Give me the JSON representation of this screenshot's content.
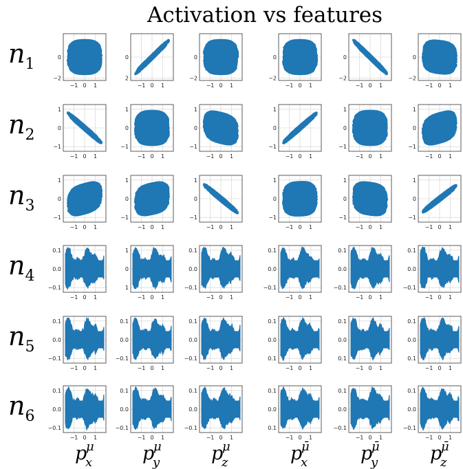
{
  "figure_title": "Activation vs features",
  "row_labels": [
    {
      "base": "n",
      "sub": "1"
    },
    {
      "base": "n",
      "sub": "2"
    },
    {
      "base": "n",
      "sub": "3"
    },
    {
      "base": "n",
      "sub": "4"
    },
    {
      "base": "n",
      "sub": "5"
    },
    {
      "base": "n",
      "sub": "6"
    }
  ],
  "column_labels": [
    {
      "base": "p",
      "sup": "μ",
      "sub": "x"
    },
    {
      "base": "p",
      "sup": "μ",
      "sub": "y"
    },
    {
      "base": "p",
      "sup": "μ",
      "sub": "z"
    },
    {
      "base": "p",
      "sup": "μ̄",
      "sub": "x"
    },
    {
      "base": "p",
      "sup": "μ̄",
      "sub": "y"
    },
    {
      "base": "p",
      "sup": "μ̄",
      "sub": "z"
    }
  ],
  "colors": {
    "fill": "#1f77b4",
    "grid": "#cfcfcf",
    "frame": "#333333"
  },
  "chart_data": {
    "type": "scatter",
    "title": "Activation vs features",
    "grid": true,
    "x_range": [
      -2,
      2
    ],
    "x_ticks": [
      "−1",
      "0",
      "1"
    ],
    "rows": [
      {
        "neuron": "n1",
        "y_range": [
          -2.2,
          2.2
        ],
        "panels": [
          {
            "y_ticks": [
              "0",
              "−2"
            ],
            "shape": "round",
            "corr": 0.0
          },
          {
            "y_ticks": [
              "0",
              "2"
            ],
            "shape": "diagonal",
            "corr": 0.95
          },
          {
            "y_ticks": [
              "0",
              "−2"
            ],
            "shape": "round",
            "corr": 0.0
          },
          {
            "y_ticks": [
              "0",
              "−2"
            ],
            "shape": "round",
            "corr": 0.0
          },
          {
            "y_ticks": [
              "0",
              "−2"
            ],
            "shape": "diagonal",
            "corr": -0.95
          },
          {
            "y_ticks": [
              "0",
              "−2"
            ],
            "shape": "round",
            "corr": -0.15
          }
        ]
      },
      {
        "neuron": "n2",
        "y_range": [
          -1.8,
          1.8
        ],
        "panels": [
          {
            "y_ticks": [
              "1",
              "0",
              "−1"
            ],
            "shape": "diagonal",
            "corr": -0.85
          },
          {
            "y_ticks": [
              "1",
              "0",
              "−1"
            ],
            "shape": "round",
            "corr": 0.0
          },
          {
            "y_ticks": [
              "1",
              "0",
              "−1"
            ],
            "shape": "tilted",
            "corr": -0.35
          },
          {
            "y_ticks": [
              "1",
              "0",
              "−1"
            ],
            "shape": "diagonal",
            "corr": 0.85
          },
          {
            "y_ticks": [
              "1",
              "0",
              "−1"
            ],
            "shape": "round",
            "corr": 0.0
          },
          {
            "y_ticks": [
              "1",
              "0",
              "−1"
            ],
            "shape": "tilted",
            "corr": 0.4
          }
        ]
      },
      {
        "neuron": "n3",
        "y_range": [
          -1.8,
          1.8
        ],
        "panels": [
          {
            "y_ticks": [
              "1",
              "0",
              "−1"
            ],
            "shape": "tilted",
            "corr": 0.4
          },
          {
            "y_ticks": [
              "1",
              "0",
              "−1"
            ],
            "shape": "tilted",
            "corr": 0.3
          },
          {
            "y_ticks": [
              "1",
              "0",
              "−1"
            ],
            "shape": "diagonal",
            "corr": -0.8
          },
          {
            "y_ticks": [
              "1",
              "0",
              "−1"
            ],
            "shape": "round",
            "corr": 0.05
          },
          {
            "y_ticks": [
              "1",
              "0",
              "−1"
            ],
            "shape": "tilted",
            "corr": -0.2
          },
          {
            "y_ticks": [
              "1",
              "0",
              "−1"
            ],
            "shape": "diagonal",
            "corr": 0.75
          }
        ]
      },
      {
        "neuron": "n4",
        "y_range": [
          -0.12,
          0.12
        ],
        "panels": [
          {
            "y_ticks": [
              "0.1",
              "0.0",
              "−0.1"
            ],
            "shape": "wavy",
            "corr": 0.0
          },
          {
            "y_ticks": [
              "1",
              "0",
              "1"
            ],
            "shape": "wavy",
            "corr": 0.0
          },
          {
            "y_ticks": [
              "0.1",
              "0.0",
              "−0.1"
            ],
            "shape": "wavy",
            "corr": 0.0
          },
          {
            "y_ticks": [
              "0.1",
              "0.0",
              "−0.1"
            ],
            "shape": "wavy",
            "corr": 0.0
          },
          {
            "y_ticks": [
              "0.1",
              "0.0",
              "−0.1"
            ],
            "shape": "wavy",
            "corr": 0.0
          },
          {
            "y_ticks": [
              "0.1",
              "0.0",
              "−0.1"
            ],
            "shape": "wavy",
            "corr": 0.0
          }
        ]
      },
      {
        "neuron": "n5",
        "y_range": [
          -0.12,
          0.12
        ],
        "panels": [
          {
            "y_ticks": [
              "0.1",
              "0.0",
              "−0.1"
            ],
            "shape": "wavy",
            "corr": 0.0
          },
          {
            "y_ticks": [
              "0.1",
              "0.0",
              "−0.1"
            ],
            "shape": "wavy",
            "corr": 0.0
          },
          {
            "y_ticks": [
              "0.1",
              "0.0",
              "−0.1"
            ],
            "shape": "wavy",
            "corr": 0.0
          },
          {
            "y_ticks": [
              "0.1",
              "0.0",
              "0.1"
            ],
            "shape": "wavy",
            "corr": 0.0
          },
          {
            "y_ticks": [
              "0.1",
              "0.0",
              "0.1"
            ],
            "shape": "wavy",
            "corr": 0.0
          },
          {
            "y_ticks": [
              "0.1",
              "0.0",
              "0.1"
            ],
            "shape": "wavy",
            "corr": 0.0
          }
        ]
      },
      {
        "neuron": "n6",
        "y_range": [
          -0.12,
          0.12
        ],
        "panels": [
          {
            "y_ticks": [
              "0.1",
              "0.0",
              "−0.1"
            ],
            "shape": "wavy",
            "corr": 0.0
          },
          {
            "y_ticks": [
              "0.1",
              "0.0",
              "−0.1"
            ],
            "shape": "wavy",
            "corr": 0.0
          },
          {
            "y_ticks": [
              "0.1",
              "0.0",
              "−0.1"
            ],
            "shape": "wavy",
            "corr": 0.0
          },
          {
            "y_ticks": [
              "0.1",
              "0.0",
              "0.1"
            ],
            "shape": "wavy",
            "corr": 0.0
          },
          {
            "y_ticks": [
              "0.1",
              "0.0",
              "−0.1"
            ],
            "shape": "wavy",
            "corr": 0.0
          },
          {
            "y_ticks": [
              "0.1",
              "0.0",
              "−0.1"
            ],
            "shape": "wavy",
            "corr": 0.0
          }
        ]
      }
    ]
  }
}
